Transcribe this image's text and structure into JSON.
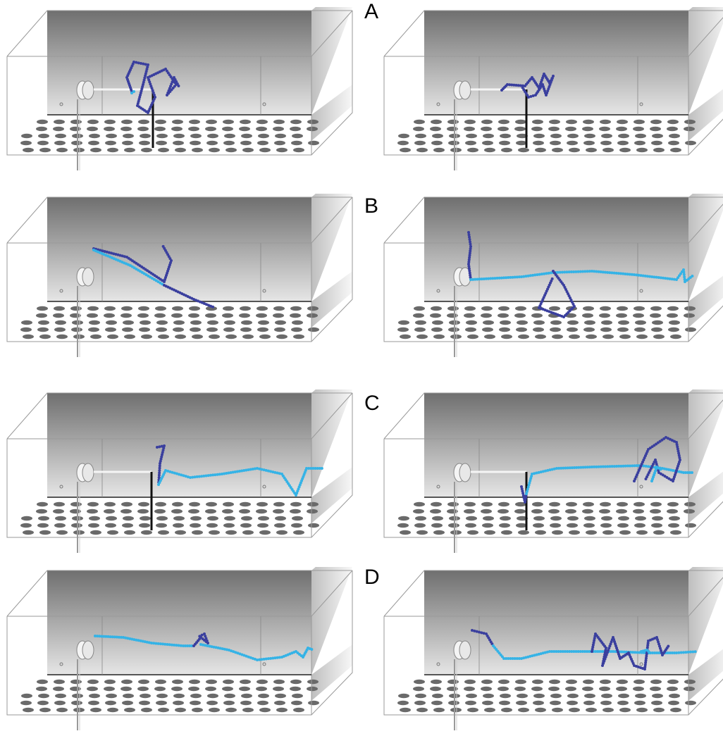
{
  "figure": {
    "panel_labels": [
      "A",
      "B",
      "C",
      "D"
    ],
    "colors": {
      "path_dark": "#3a3f9e",
      "path_light": "#35b3e6",
      "floor_holes": "#6a6a6a",
      "wall_top": "#6f6f6f",
      "wall_bottom": "#e6e6e6",
      "outline": "#9a9a9a"
    },
    "rows": [
      {
        "label": "A",
        "panels": [
          "left",
          "right"
        ]
      },
      {
        "label": "B",
        "panels": [
          "left",
          "right"
        ]
      },
      {
        "label": "C",
        "panels": [
          "left",
          "right"
        ]
      },
      {
        "label": "D",
        "panels": [
          "left",
          "right"
        ]
      }
    ]
  }
}
